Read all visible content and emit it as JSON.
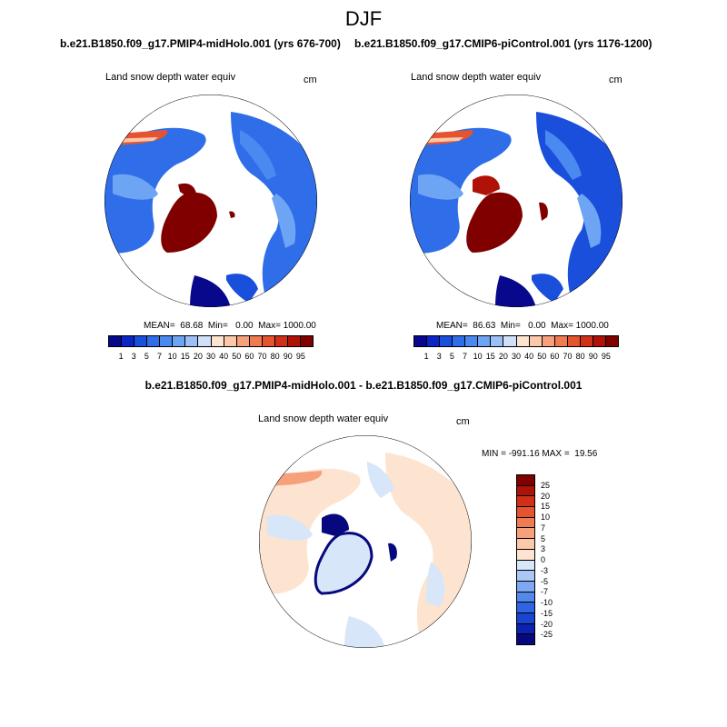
{
  "figure": {
    "title": "DJF",
    "left_case": "b.e21.B1850.f09_g17.PMIP4-midHolo.001 (yrs 676-700)",
    "right_case": "b.e21.B1850.f09_g17.CMIP6-piControl.001 (yrs 1176-1200)",
    "diff_case": "b.e21.B1850.f09_g17.PMIP4-midHolo.001 - b.e21.B1850.f09_g17.CMIP6-piControl.001"
  },
  "panels": {
    "left": {
      "variable": "Land snow depth water equiv",
      "units": "cm",
      "stats": "MEAN=  68.68  Min=   0.00  Max= 1000.00"
    },
    "right": {
      "variable": "Land snow depth water equiv",
      "units": "cm",
      "stats": "MEAN=  86.63  Min=   0.00  Max= 1000.00"
    },
    "diff": {
      "variable": "Land snow depth water equiv",
      "units": "cm",
      "stats": "MIN = -991.16 MAX =  19.56"
    }
  },
  "colorbars": {
    "absolute": {
      "labels": [
        "1",
        "3",
        "5",
        "7",
        "10",
        "15",
        "20",
        "30",
        "40",
        "50",
        "60",
        "70",
        "80",
        "90",
        "95"
      ],
      "colors": [
        "#08088c",
        "#0b26c4",
        "#1a4fdc",
        "#2f6ee8",
        "#4a8af0",
        "#6ea4f4",
        "#9cc0f6",
        "#cfe0f8",
        "#fde4d0",
        "#fbc8aa",
        "#f7a07c",
        "#f07a52",
        "#e5532f",
        "#d0301a",
        "#b01208",
        "#800000"
      ]
    },
    "difference": {
      "labels": [
        "25",
        "20",
        "15",
        "10",
        "7",
        "5",
        "3",
        "0",
        "-3",
        "-5",
        "-7",
        "-10",
        "-15",
        "-20",
        "-25"
      ],
      "colors": [
        "#800000",
        "#b01208",
        "#d0301a",
        "#e5532f",
        "#f07a52",
        "#f7a07c",
        "#fbc8aa",
        "#fde4d0",
        "#d7e6f8",
        "#aac8f5",
        "#7ea8f2",
        "#5488ec",
        "#2f64e2",
        "#1a45d0",
        "#0c22b0",
        "#08087e"
      ]
    }
  }
}
